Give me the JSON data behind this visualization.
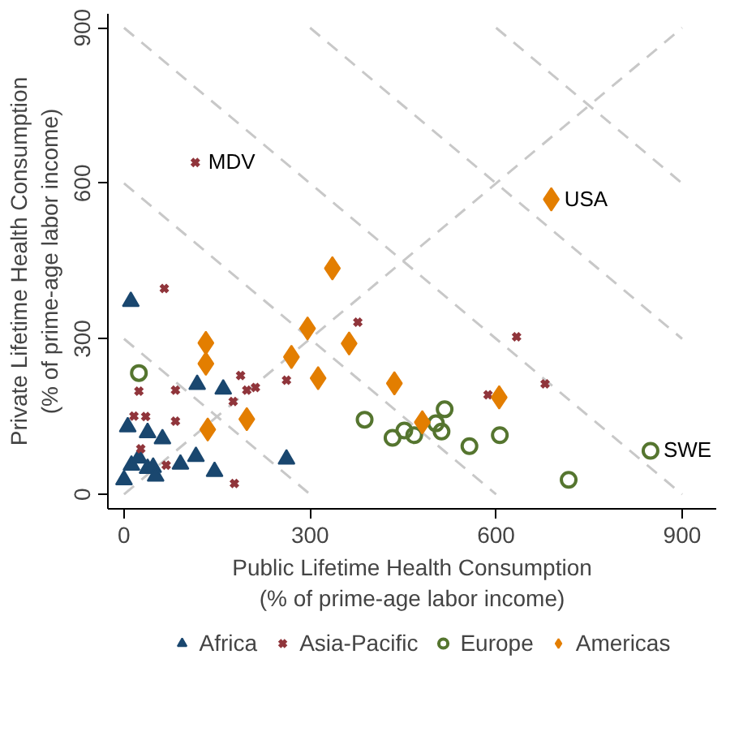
{
  "chart_data": {
    "type": "scatter",
    "xlabel": "Public Lifetime Health Consumption\n(% of prime-age labor income)",
    "ylabel": "Private Lifetime Health Consumption\n(% of prime-age labor income)",
    "xlim": [
      -26,
      955
    ],
    "ylim": [
      -28,
      927
    ],
    "xticks": [
      0,
      300,
      600,
      900
    ],
    "yticks": [
      0,
      300,
      600,
      900
    ],
    "grid": false,
    "legend": "bottom",
    "series": [
      {
        "type": "line",
        "line_style": "dashed",
        "marker": "none",
        "color": "#c8c8c8",
        "x": [
          0,
          300
        ],
        "values": [
          300,
          0
        ]
      },
      {
        "type": "line",
        "line_style": "dashed",
        "marker": "none",
        "color": "#c8c8c8",
        "x": [
          0,
          600
        ],
        "values": [
          600,
          0
        ]
      },
      {
        "type": "line",
        "line_style": "dashed",
        "marker": "none",
        "color": "#c8c8c8",
        "x": [
          0,
          900
        ],
        "values": [
          900,
          0
        ]
      },
      {
        "type": "line",
        "line_style": "dashed",
        "marker": "none",
        "color": "#c8c8c8",
        "x": [
          300,
          900
        ],
        "values": [
          900,
          300
        ]
      },
      {
        "type": "line",
        "line_style": "dashed",
        "marker": "none",
        "color": "#c8c8c8",
        "x": [
          600,
          900
        ],
        "values": [
          900,
          600
        ]
      },
      {
        "type": "line",
        "line_style": "dashed",
        "marker": "none",
        "color": "#c8c8c8",
        "x": [
          0,
          900
        ],
        "values": [
          0,
          900
        ]
      },
      {
        "name": "Africa",
        "marker": "triangle",
        "color": "#1a476f",
        "x": [
          11,
          6,
          38,
          62,
          118,
          160,
          0,
          12,
          24,
          38,
          47,
          51,
          91,
          116,
          146,
          262
        ],
        "values": [
          372,
          130,
          119,
          107,
          212,
          203,
          28,
          56,
          70,
          50,
          52,
          35,
          58,
          73,
          44,
          68
        ]
      },
      {
        "name": "Asia-Pacific",
        "marker": "cross",
        "color": "#90353b",
        "x": [
          65,
          24,
          83,
          16,
          35,
          83,
          27,
          68,
          188,
          198,
          212,
          176,
          178,
          262,
          115,
          377,
          633,
          679,
          587
        ],
        "values": [
          397,
          199,
          201,
          151,
          150,
          141,
          88,
          56,
          229,
          201,
          206,
          179,
          21,
          220,
          640,
          332,
          304,
          213,
          192
        ]
      },
      {
        "name": "Europe",
        "marker": "circle",
        "color": "#55752f",
        "x": [
          24,
          388,
          433,
          452,
          468,
          503,
          517,
          512,
          557,
          606,
          717,
          849
        ],
        "values": [
          234,
          144,
          109,
          123,
          114,
          137,
          164,
          121,
          93,
          114,
          28,
          84
        ]
      },
      {
        "name": "Americas",
        "marker": "diamond",
        "color": "#e37e00",
        "x": [
          336,
          132,
          132,
          296,
          270,
          313,
          198,
          135,
          363,
          436,
          481,
          605,
          689
        ],
        "values": [
          436,
          292,
          252,
          320,
          265,
          224,
          145,
          125,
          291,
          214,
          139,
          187,
          569
        ]
      }
    ],
    "annotations": [
      {
        "text": "MDV",
        "x": 115,
        "y": 640
      },
      {
        "text": "USA",
        "x": 689,
        "y": 569
      },
      {
        "text": "SWE",
        "x": 849,
        "y": 84
      }
    ]
  }
}
